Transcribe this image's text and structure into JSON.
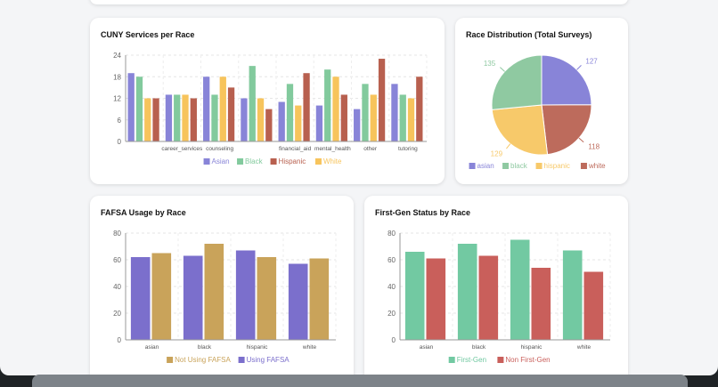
{
  "charts": [
    {
      "id": "services",
      "title": "CUNY Services per Race",
      "chart_data": {
        "type": "bar",
        "title": "CUNY Services per Race",
        "categories": [
          "",
          "career_services",
          "counseling",
          "",
          "financial_aid",
          "mental_health",
          "other",
          "tutoring"
        ],
        "series": [
          {
            "name": "Asian",
            "color": "#8884d8",
            "values": [
              19,
              13,
              18,
              12,
              11,
              10,
              9,
              16
            ]
          },
          {
            "name": "Black",
            "color": "#82ca9d",
            "values": [
              18,
              13,
              13,
              21,
              16,
              20,
              16,
              13
            ]
          },
          {
            "name": "White",
            "color": "#f7c45c",
            "values": [
              12,
              13,
              18,
              12,
              10,
              18,
              13,
              12
            ]
          },
          {
            "name": "Hispanic",
            "color": "#b8604f",
            "values": [
              12,
              12,
              15,
              9,
              19,
              13,
              23,
              18
            ]
          }
        ],
        "legend": [
          "Asian",
          "Black",
          "Hispanic",
          "White"
        ],
        "ylim": [
          0,
          24
        ],
        "yticks": [
          0,
          6,
          12,
          18,
          24
        ],
        "grid": true,
        "legend_position": "bottom"
      }
    },
    {
      "id": "race",
      "title": "Race Distribution (Total Surveys)",
      "chart_data": {
        "type": "pie",
        "title": "Race Distribution (Total Surveys)",
        "slices": [
          {
            "name": "asian",
            "value": 127,
            "color": "#8884d8"
          },
          {
            "name": "white",
            "value": 118,
            "color": "#bd6b5c"
          },
          {
            "name": "hispanic",
            "value": 129,
            "color": "#f7c96a"
          },
          {
            "name": "black",
            "value": 135,
            "color": "#8fc9a1"
          }
        ],
        "legend": [
          "asian",
          "black",
          "hispanic",
          "white"
        ],
        "legend_position": "bottom"
      }
    },
    {
      "id": "fafsa",
      "title": "FAFSA Usage by Race",
      "chart_data": {
        "type": "bar",
        "title": "FAFSA Usage by Race",
        "categories": [
          "asian",
          "black",
          "hispanic",
          "white"
        ],
        "series": [
          {
            "name": "Using FAFSA",
            "color": "#7b6fcc",
            "values": [
              62,
              63,
              67,
              57
            ]
          },
          {
            "name": "Not Using FAFSA",
            "color": "#c9a35a",
            "values": [
              65,
              72,
              62,
              61
            ]
          }
        ],
        "legend": [
          "Not Using FAFSA",
          "Using FAFSA"
        ],
        "ylim": [
          0,
          80
        ],
        "yticks": [
          0,
          20,
          40,
          60,
          80
        ],
        "grid": true,
        "legend_position": "bottom"
      }
    },
    {
      "id": "firstgen",
      "title": "First-Gen Status by Race",
      "chart_data": {
        "type": "bar",
        "title": "First-Gen Status by Race",
        "categories": [
          "asian",
          "black",
          "hispanic",
          "white"
        ],
        "series": [
          {
            "name": "First-Gen",
            "color": "#72c9a2",
            "values": [
              66,
              72,
              75,
              67
            ]
          },
          {
            "name": "Non First-Gen",
            "color": "#c95f5b",
            "values": [
              61,
              63,
              54,
              51
            ]
          }
        ],
        "legend": [
          "First-Gen",
          "Non First-Gen"
        ],
        "ylim": [
          0,
          80
        ],
        "yticks": [
          0,
          20,
          40,
          60,
          80
        ],
        "grid": true,
        "legend_position": "bottom"
      }
    }
  ]
}
